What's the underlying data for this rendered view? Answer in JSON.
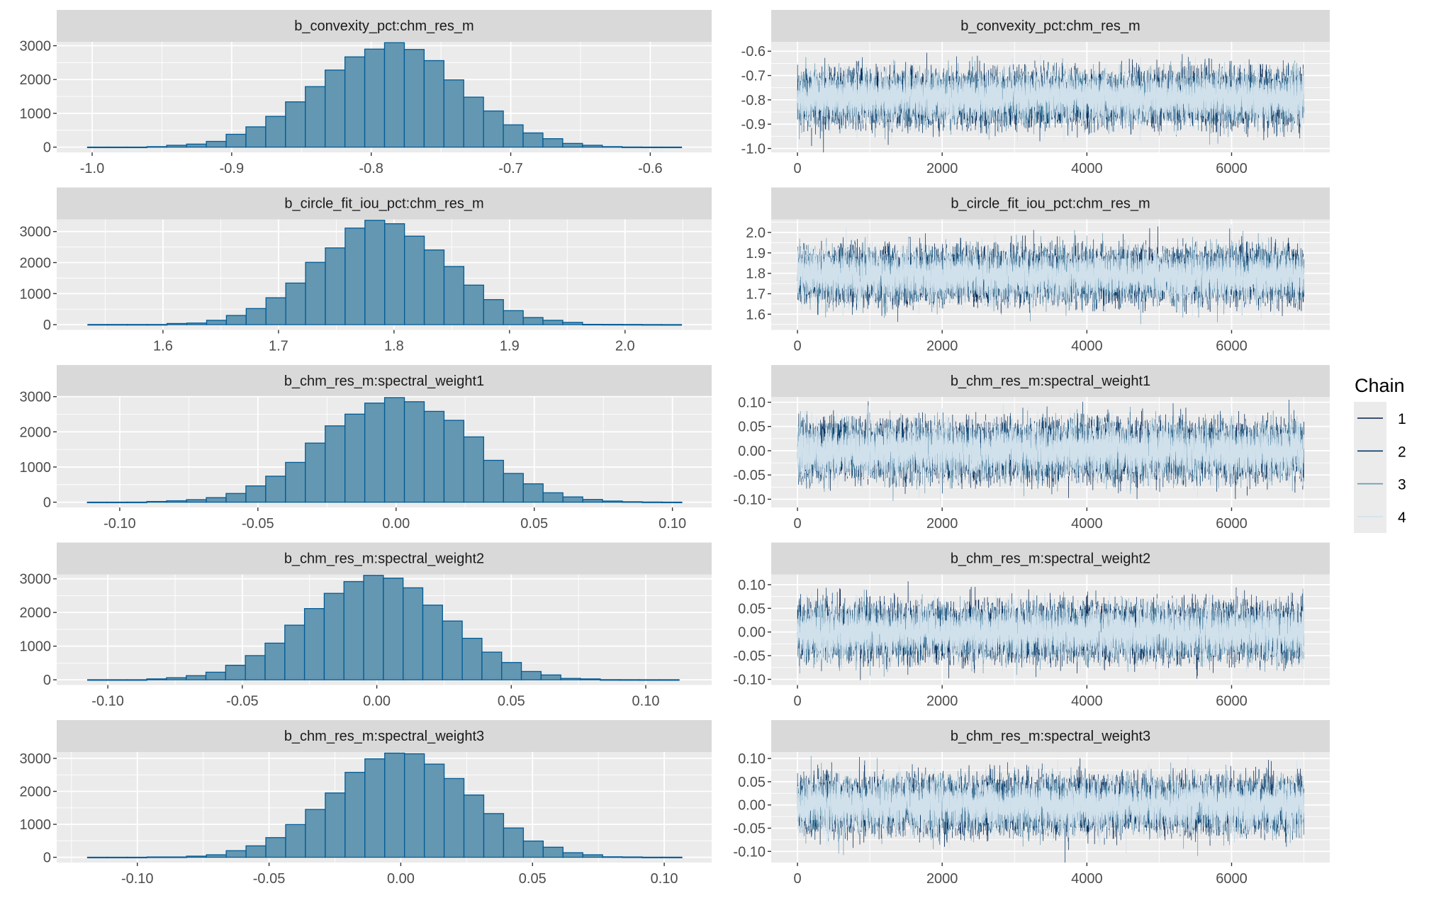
{
  "colors": {
    "panel_bg": "#ebebeb",
    "strip_bg": "#d9d9d9",
    "hist_fill": "#6497b1",
    "hist_outline": "#005b96",
    "chains": [
      "#011f4b",
      "#03396c",
      "#6497b1",
      "#d1e1ec"
    ]
  },
  "legend": {
    "title": "Chain",
    "items": [
      "1",
      "2",
      "3",
      "4"
    ],
    "placement": "right"
  },
  "chart_data": [
    {
      "type": "bar",
      "subtype": "histogram",
      "title": "b_convexity_pct:chm_res_m",
      "bin_start": -1.0033,
      "bin_width": 0.01419,
      "counts": [
        2,
        2,
        2,
        15,
        55,
        90,
        170,
        380,
        600,
        910,
        1340,
        1790,
        2280,
        2670,
        2900,
        3090,
        2890,
        2560,
        1990,
        1480,
        1070,
        660,
        420,
        250,
        110,
        55,
        15,
        4,
        2,
        2
      ],
      "xlim": [
        -1.0254,
        -0.556
      ],
      "ylim": [
        -155,
        3116
      ],
      "xticks": [
        -1.0,
        -0.9,
        -0.8,
        -0.7,
        -0.6
      ],
      "xtick_labels": [
        "-1.0",
        "-0.9",
        "-0.8",
        "-0.7",
        "-0.6"
      ],
      "yticks": [
        0,
        1000,
        2000,
        3000
      ],
      "ytick_labels": [
        "0",
        "1000",
        "2000",
        "3000"
      ]
    },
    {
      "type": "line",
      "subtype": "trace",
      "title": "b_convexity_pct:chm_res_m",
      "iterations": 7000,
      "chain_mean": -0.79,
      "chain_sd": 0.05,
      "xlim": [
        -363,
        7357
      ],
      "ylim": [
        -1.016,
        -0.5614
      ],
      "xticks": [
        0,
        2000,
        4000,
        6000
      ],
      "xtick_labels": [
        "0",
        "2000",
        "4000",
        "6000"
      ],
      "yticks": [
        -0.6,
        -0.7,
        -0.8,
        -0.9,
        -1.0
      ],
      "ytick_labels": [
        "-0.6",
        "-0.7",
        "-0.8",
        "-0.9",
        "-1.0"
      ]
    },
    {
      "type": "bar",
      "subtype": "histogram",
      "title": "b_circle_fit_iou_pct:chm_res_m",
      "bin_start": 1.535,
      "bin_width": 0.01713,
      "counts": [
        5,
        5,
        5,
        5,
        37,
        52,
        140,
        296,
        519,
        867,
        1340,
        2007,
        2474,
        3111,
        3363,
        3252,
        2852,
        2407,
        1874,
        1274,
        807,
        452,
        230,
        140,
        74,
        10,
        8,
        6,
        3,
        2
      ],
      "xlim": [
        1.508,
        2.075
      ],
      "ylim": [
        -170,
        3393
      ],
      "xticks": [
        1.6,
        1.7,
        1.8,
        1.9,
        2.0
      ],
      "xtick_labels": [
        "1.6",
        "1.7",
        "1.8",
        "1.9",
        "2.0"
      ],
      "yticks": [
        0,
        1000,
        2000,
        3000
      ],
      "ytick_labels": [
        "0",
        "1000",
        "2000",
        "3000"
      ]
    },
    {
      "type": "line",
      "subtype": "trace",
      "title": "b_circle_fit_iou_pct:chm_res_m",
      "iterations": 7000,
      "chain_mean": 1.79,
      "chain_sd": 0.06,
      "xlim": [
        -363,
        7357
      ],
      "ylim": [
        1.523,
        2.064
      ],
      "xticks": [
        0,
        2000,
        4000,
        6000
      ],
      "xtick_labels": [
        "0",
        "2000",
        "4000",
        "6000"
      ],
      "yticks": [
        2.0,
        1.9,
        1.8,
        1.7,
        1.6
      ],
      "ytick_labels": [
        "2.0",
        "1.9",
        "1.8",
        "1.7",
        "1.6"
      ]
    },
    {
      "type": "bar",
      "subtype": "histogram",
      "title": "b_chm_res_m:spectral_weight1",
      "bin_start": -0.1117,
      "bin_width": 0.00717,
      "counts": [
        2,
        2,
        3,
        20,
        40,
        72,
        130,
        248,
        464,
        739,
        1131,
        1680,
        2170,
        2503,
        2817,
        2974,
        2856,
        2582,
        2327,
        1856,
        1190,
        817,
        523,
        268,
        150,
        78,
        33,
        13,
        5,
        2
      ],
      "xlim": [
        -0.1228,
        0.1142
      ],
      "ylim": [
        -150,
        2993
      ],
      "xticks": [
        -0.1,
        -0.05,
        0.0,
        0.05,
        0.1
      ],
      "xtick_labels": [
        "-0.10",
        "-0.05",
        "0.00",
        "0.05",
        "0.10"
      ],
      "yticks": [
        0,
        1000,
        2000,
        3000
      ],
      "ytick_labels": [
        "0",
        "1000",
        "2000",
        "3000"
      ]
    },
    {
      "type": "line",
      "subtype": "trace",
      "title": "b_chm_res_m:spectral_weight1",
      "iterations": 7000,
      "chain_mean": 0.0,
      "chain_sd": 0.027,
      "xlim": [
        -363,
        7357
      ],
      "ylim": [
        -0.117,
        0.111
      ],
      "xticks": [
        0,
        2000,
        4000,
        6000
      ],
      "xtick_labels": [
        "0",
        "2000",
        "4000",
        "6000"
      ],
      "yticks": [
        0.1,
        0.05,
        0.0,
        -0.05,
        -0.1
      ],
      "ytick_labels": [
        "0.10",
        "0.05",
        "0.00",
        "-0.05",
        "-0.10"
      ]
    },
    {
      "type": "bar",
      "subtype": "histogram",
      "title": "b_chm_res_m:spectral_weight2",
      "bin_start": -0.1075,
      "bin_width": 0.00733,
      "counts": [
        3,
        3,
        3,
        27,
        62,
        123,
        226,
        432,
        719,
        1089,
        1623,
        2116,
        2568,
        2918,
        3103,
        3021,
        2733,
        2219,
        1747,
        1233,
        822,
        514,
        247,
        144,
        41,
        27,
        5,
        4,
        3,
        3
      ],
      "xlim": [
        -0.119,
        0.1245
      ],
      "ylim": [
        -155,
        3130
      ],
      "xticks": [
        -0.1,
        -0.05,
        0.0,
        0.05,
        0.1
      ],
      "xtick_labels": [
        "-0.10",
        "-0.05",
        "0.00",
        "0.05",
        "0.10"
      ],
      "yticks": [
        0,
        1000,
        2000,
        3000
      ],
      "ytick_labels": [
        "0",
        "1000",
        "2000",
        "3000"
      ]
    },
    {
      "type": "line",
      "subtype": "trace",
      "title": "b_chm_res_m:spectral_weight2",
      "iterations": 7000,
      "chain_mean": 0.0,
      "chain_sd": 0.027,
      "xlim": [
        -363,
        7357
      ],
      "ylim": [
        -0.112,
        0.1216
      ],
      "xticks": [
        0,
        2000,
        4000,
        6000
      ],
      "xtick_labels": [
        "0",
        "2000",
        "4000",
        "6000"
      ],
      "yticks": [
        0.1,
        0.05,
        0.0,
        -0.05,
        -0.1
      ],
      "ytick_labels": [
        "0.10",
        "0.05",
        "0.00",
        "-0.05",
        "-0.10"
      ]
    },
    {
      "type": "bar",
      "subtype": "histogram",
      "title": "b_chm_res_m:spectral_weight3",
      "bin_start": -0.1189,
      "bin_width": 0.00752,
      "counts": [
        2,
        2,
        2,
        10,
        10,
        35,
        76,
        200,
        347,
        597,
        993,
        1451,
        1951,
        2576,
        2986,
        3160,
        3139,
        2826,
        2389,
        1889,
        1326,
        889,
        493,
        306,
        139,
        76,
        15,
        10,
        3,
        3
      ],
      "xlim": [
        -0.1306,
        0.118
      ],
      "ylim": [
        -160,
        3194
      ],
      "xticks": [
        -0.1,
        -0.05,
        0.0,
        0.05,
        0.1
      ],
      "xtick_labels": [
        "-0.10",
        "-0.05",
        "0.00",
        "0.05",
        "0.10"
      ],
      "yticks": [
        0,
        1000,
        2000,
        3000
      ],
      "ytick_labels": [
        "0",
        "1000",
        "2000",
        "3000"
      ]
    },
    {
      "type": "line",
      "subtype": "trace",
      "title": "b_chm_res_m:spectral_weight3",
      "iterations": 7000,
      "chain_mean": 0.0,
      "chain_sd": 0.027,
      "xlim": [
        -363,
        7357
      ],
      "ylim": [
        -0.124,
        0.114
      ],
      "xticks": [
        0,
        2000,
        4000,
        6000
      ],
      "xtick_labels": [
        "0",
        "2000",
        "4000",
        "6000"
      ],
      "yticks": [
        0.1,
        0.05,
        0.0,
        -0.05,
        -0.1
      ],
      "ytick_labels": [
        "0.10",
        "0.05",
        "0.00",
        "-0.05",
        "-0.10"
      ]
    }
  ]
}
